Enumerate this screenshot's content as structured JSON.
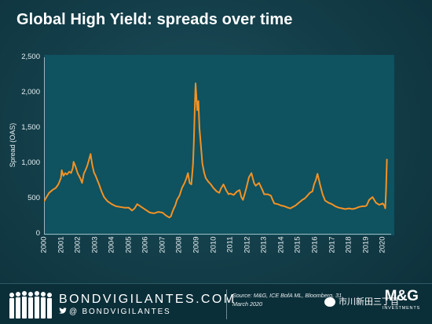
{
  "colors": {
    "line": "#f39224",
    "plot_background": "#0f5260",
    "page_background": "#123c47",
    "axis": "#9fb6bb",
    "text": "#ffffff"
  },
  "header": {
    "title": "Global High Yield: spreads over time"
  },
  "chart_data": {
    "type": "line",
    "title": "Global High Yield: spreads over time",
    "ylabel": "Spread (OAS)",
    "xlabel": "",
    "ylim": [
      0,
      2500
    ],
    "xlim": [
      2000,
      2020.5
    ],
    "y_ticks": [
      0,
      500,
      1000,
      1500,
      2000,
      2500
    ],
    "y_tick_labels": [
      "0",
      "500",
      "1,000",
      "1,500",
      "2,000",
      "2,500"
    ],
    "x_tick_labels": [
      "2000",
      "2001",
      "2002",
      "2003",
      "2004",
      "2005",
      "2006",
      "2007",
      "2008",
      "2009",
      "2010",
      "2011",
      "2012",
      "2013",
      "2014",
      "2015",
      "2016",
      "2017",
      "2018",
      "2019",
      "2020"
    ],
    "grid": false,
    "legend": "none",
    "series": [
      {
        "x": [
          2000.0,
          2000.15,
          2000.3,
          2000.5,
          2000.7,
          2000.85,
          2001.0,
          2001.05,
          2001.15,
          2001.25,
          2001.35,
          2001.5,
          2001.6,
          2001.7,
          2001.75,
          2001.85,
          2002.0,
          2002.05,
          2002.15,
          2002.25,
          2002.35,
          2002.45,
          2002.55,
          2002.65,
          2002.75,
          2002.85,
          2002.95,
          2003.05,
          2003.15,
          2003.25,
          2003.4,
          2003.55,
          2003.75,
          2004.0,
          2004.25,
          2004.5,
          2004.75,
          2005.0,
          2005.2,
          2005.35,
          2005.5,
          2005.75,
          2006.0,
          2006.25,
          2006.5,
          2006.75,
          2007.0,
          2007.2,
          2007.4,
          2007.5,
          2007.55,
          2007.65,
          2007.75,
          2007.85,
          2008.0,
          2008.15,
          2008.3,
          2008.4,
          2008.5,
          2008.6,
          2008.7,
          2008.8,
          2008.85,
          2008.9,
          2008.95,
          2009.0,
          2009.05,
          2009.12,
          2009.18,
          2009.25,
          2009.3,
          2009.35,
          2009.45,
          2009.55,
          2009.7,
          2009.85,
          2010.0,
          2010.2,
          2010.35,
          2010.45,
          2010.6,
          2010.75,
          2010.9,
          2011.0,
          2011.2,
          2011.4,
          2011.55,
          2011.65,
          2011.75,
          2011.85,
          2011.95,
          2012.1,
          2012.25,
          2012.4,
          2012.5,
          2012.7,
          2012.9,
          2013.0,
          2013.2,
          2013.4,
          2013.5,
          2013.6,
          2013.8,
          2014.0,
          2014.2,
          2014.4,
          2014.55,
          2014.7,
          2014.85,
          2014.95,
          2015.1,
          2015.25,
          2015.4,
          2015.55,
          2015.7,
          2015.85,
          2015.95,
          2016.05,
          2016.15,
          2016.3,
          2016.45,
          2016.6,
          2016.8,
          2017.0,
          2017.2,
          2017.4,
          2017.6,
          2017.8,
          2018.0,
          2018.2,
          2018.4,
          2018.6,
          2018.8,
          2018.95,
          2019.05,
          2019.2,
          2019.4,
          2019.6,
          2019.8,
          2020.0,
          2020.1,
          2020.15,
          2020.2,
          2020.25
        ],
        "y": [
          460,
          520,
          580,
          620,
          650,
          700,
          790,
          900,
          820,
          860,
          840,
          880,
          860,
          930,
          1020,
          960,
          850,
          830,
          780,
          720,
          850,
          900,
          960,
          1040,
          1130,
          980,
          870,
          820,
          760,
          700,
          600,
          520,
          460,
          420,
          390,
          380,
          370,
          370,
          330,
          360,
          420,
          380,
          340,
          300,
          290,
          310,
          300,
          260,
          230,
          250,
          290,
          350,
          400,
          480,
          540,
          650,
          720,
          780,
          860,
          720,
          700,
          980,
          1300,
          1750,
          2130,
          1950,
          1750,
          1880,
          1500,
          1300,
          1150,
          1000,
          870,
          790,
          740,
          700,
          650,
          600,
          580,
          640,
          700,
          620,
          560,
          570,
          550,
          600,
          620,
          520,
          480,
          560,
          650,
          800,
          860,
          720,
          680,
          720,
          620,
          560,
          560,
          540,
          480,
          430,
          420,
          400,
          390,
          370,
          360,
          380,
          400,
          420,
          450,
          480,
          500,
          540,
          580,
          600,
          700,
          760,
          850,
          700,
          560,
          470,
          440,
          420,
          390,
          370,
          360,
          350,
          360,
          350,
          360,
          380,
          390,
          390,
          400,
          480,
          520,
          440,
          410,
          430,
          400,
          360,
          620,
          1060
        ]
      }
    ]
  },
  "footer": {
    "brand": "BONDVIGILANTES.COM",
    "twitter": "@ BONDVIGILANTES",
    "source": "Source: M&G, ICE BofA ML, Bloomberg, 31 March 2020",
    "wechat_watermark": "市川新田三丁目",
    "logo_letters": "M&G",
    "logo_subtext": "INVESTMENTS"
  }
}
